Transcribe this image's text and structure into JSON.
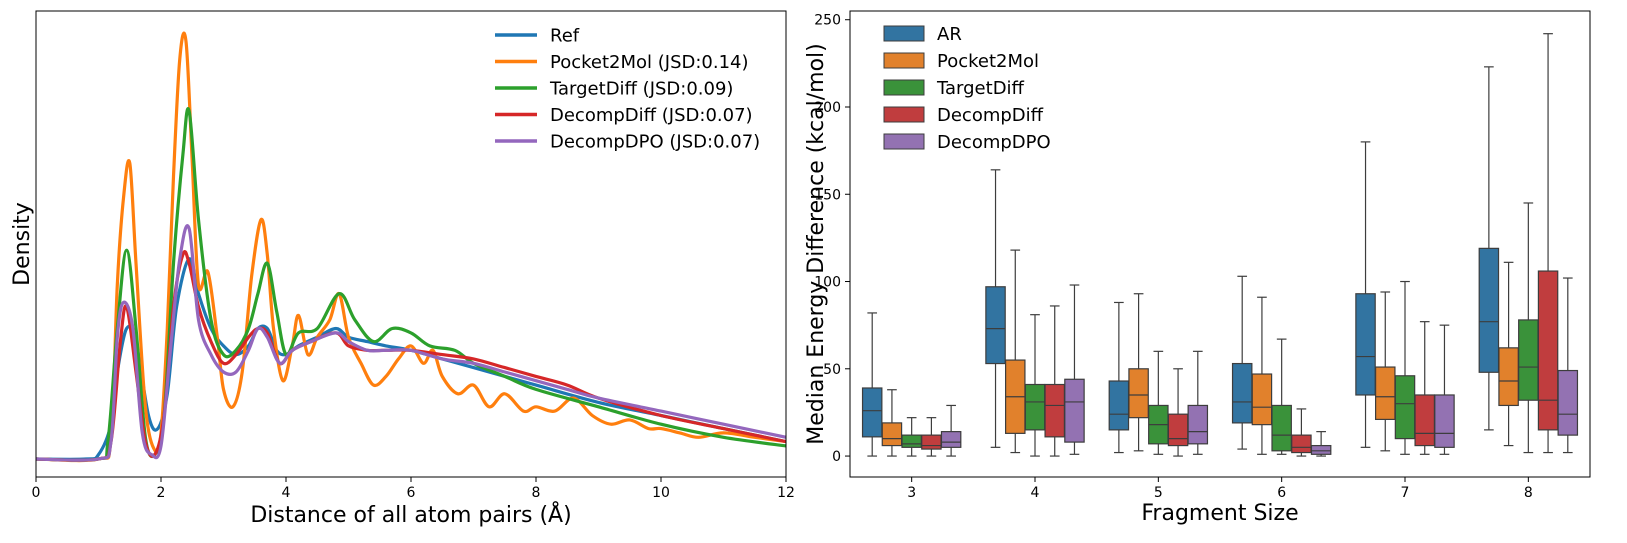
{
  "chart_data": [
    {
      "type": "line",
      "title": "",
      "xlabel": "Distance of all atom pairs (Å)",
      "ylabel": "Density",
      "xlim": [
        0,
        12
      ],
      "ylim": [
        0,
        1.0
      ],
      "xticks": [
        "0",
        "2",
        "4",
        "6",
        "8",
        "10",
        "12"
      ],
      "legend_position": "top-right",
      "series": [
        {
          "name": "Ref",
          "color": "#1f77b4",
          "x": [
            0,
            0.8,
            1.0,
            1.2,
            1.3,
            1.45,
            1.6,
            1.8,
            1.95,
            2.1,
            2.25,
            2.45,
            2.6,
            2.8,
            3.0,
            3.2,
            3.4,
            3.55,
            3.7,
            3.85,
            4.0,
            4.2,
            4.5,
            4.8,
            5.0,
            5.3,
            5.6,
            6.0,
            6.5,
            7.0,
            8.0,
            9.0,
            10.0,
            11.0,
            12.0
          ],
          "y": [
            0,
            0,
            0.01,
            0.08,
            0.2,
            0.3,
            0.27,
            0.1,
            0.07,
            0.15,
            0.35,
            0.46,
            0.38,
            0.3,
            0.26,
            0.24,
            0.26,
            0.3,
            0.3,
            0.25,
            0.24,
            0.26,
            0.28,
            0.3,
            0.28,
            0.27,
            0.26,
            0.25,
            0.23,
            0.21,
            0.17,
            0.13,
            0.1,
            0.07,
            0.04
          ]
        },
        {
          "name": "Pocket2Mol (JSD:0.14)",
          "color": "#ff7f0e",
          "x": [
            0,
            1.0,
            1.2,
            1.3,
            1.4,
            1.5,
            1.6,
            1.75,
            1.9,
            2.0,
            2.1,
            2.2,
            2.3,
            2.4,
            2.5,
            2.6,
            2.75,
            2.9,
            3.0,
            3.15,
            3.3,
            3.45,
            3.6,
            3.7,
            3.8,
            3.95,
            4.1,
            4.2,
            4.35,
            4.5,
            4.7,
            4.85,
            5.0,
            5.2,
            5.4,
            5.6,
            5.8,
            6.0,
            6.2,
            6.35,
            6.5,
            6.75,
            7.0,
            7.25,
            7.5,
            7.8,
            8.0,
            8.3,
            8.6,
            8.9,
            9.2,
            9.5,
            9.8,
            10.0,
            10.3,
            10.6,
            11.0,
            11.5,
            12.0
          ],
          "y": [
            0,
            0,
            0.05,
            0.4,
            0.6,
            0.68,
            0.45,
            0.12,
            0.02,
            0.06,
            0.3,
            0.65,
            0.92,
            0.96,
            0.68,
            0.4,
            0.43,
            0.28,
            0.16,
            0.12,
            0.2,
            0.42,
            0.55,
            0.47,
            0.3,
            0.18,
            0.26,
            0.33,
            0.24,
            0.28,
            0.32,
            0.38,
            0.28,
            0.22,
            0.17,
            0.19,
            0.23,
            0.26,
            0.22,
            0.25,
            0.19,
            0.15,
            0.17,
            0.12,
            0.15,
            0.11,
            0.12,
            0.11,
            0.14,
            0.1,
            0.08,
            0.09,
            0.07,
            0.07,
            0.06,
            0.05,
            0.06,
            0.05,
            0.04
          ]
        },
        {
          "name": "TargetDiff (JSD:0.09)",
          "color": "#2ca02c",
          "x": [
            0,
            1.0,
            1.15,
            1.3,
            1.45,
            1.6,
            1.75,
            1.9,
            2.05,
            2.2,
            2.35,
            2.45,
            2.6,
            2.8,
            3.0,
            3.2,
            3.4,
            3.55,
            3.7,
            3.85,
            4.0,
            4.2,
            4.5,
            4.85,
            5.1,
            5.4,
            5.7,
            6.0,
            6.3,
            6.7,
            7.0,
            7.5,
            8.0,
            9.0,
            10.0,
            11.0,
            12.0
          ],
          "y": [
            0,
            0,
            0.04,
            0.3,
            0.48,
            0.3,
            0.05,
            0.01,
            0.1,
            0.45,
            0.7,
            0.8,
            0.55,
            0.32,
            0.24,
            0.25,
            0.3,
            0.38,
            0.45,
            0.34,
            0.24,
            0.29,
            0.3,
            0.38,
            0.32,
            0.27,
            0.3,
            0.29,
            0.26,
            0.25,
            0.22,
            0.19,
            0.16,
            0.12,
            0.08,
            0.05,
            0.03
          ]
        },
        {
          "name": "DecompDiff (JSD:0.07)",
          "color": "#d62728",
          "x": [
            0,
            1.0,
            1.2,
            1.35,
            1.45,
            1.6,
            1.75,
            1.9,
            2.05,
            2.2,
            2.35,
            2.45,
            2.6,
            2.8,
            3.0,
            3.2,
            3.4,
            3.55,
            3.7,
            3.9,
            4.1,
            4.4,
            4.8,
            5.0,
            5.3,
            5.6,
            6.0,
            6.5,
            7.0,
            7.5,
            8.0,
            8.5,
            9.0,
            10.0,
            11.0,
            12.0
          ],
          "y": [
            0,
            0,
            0.04,
            0.27,
            0.35,
            0.2,
            0.04,
            0.01,
            0.1,
            0.35,
            0.47,
            0.45,
            0.35,
            0.27,
            0.22,
            0.24,
            0.28,
            0.3,
            0.29,
            0.22,
            0.25,
            0.27,
            0.29,
            0.26,
            0.25,
            0.25,
            0.25,
            0.24,
            0.23,
            0.21,
            0.19,
            0.17,
            0.14,
            0.1,
            0.07,
            0.04
          ]
        },
        {
          "name": "DecompDPO (JSD:0.07)",
          "color": "#9467bd",
          "x": [
            0,
            1.0,
            1.2,
            1.3,
            1.4,
            1.55,
            1.7,
            1.85,
            2.0,
            2.15,
            2.3,
            2.45,
            2.6,
            2.8,
            3.0,
            3.2,
            3.4,
            3.55,
            3.7,
            3.9,
            4.1,
            4.4,
            4.8,
            5.0,
            5.3,
            5.6,
            6.0,
            6.5,
            7.0,
            7.5,
            8.0,
            8.5,
            9.0,
            10.0,
            11.0,
            12.0
          ],
          "y": [
            0,
            0,
            0.04,
            0.28,
            0.36,
            0.3,
            0.06,
            0.01,
            0.03,
            0.25,
            0.46,
            0.53,
            0.32,
            0.24,
            0.2,
            0.2,
            0.25,
            0.3,
            0.28,
            0.22,
            0.25,
            0.27,
            0.29,
            0.27,
            0.25,
            0.25,
            0.25,
            0.23,
            0.22,
            0.2,
            0.18,
            0.16,
            0.14,
            0.11,
            0.08,
            0.05
          ]
        }
      ]
    },
    {
      "type": "box",
      "title": "",
      "xlabel": "Fragment Size",
      "ylabel": "Median Energy Difference (kcal/mol)",
      "ylim": [
        -12,
        255
      ],
      "yticks": [
        0,
        50,
        100,
        150,
        200,
        250
      ],
      "categories": [
        "3",
        "4",
        "5",
        "6",
        "7",
        "8"
      ],
      "legend_position": "top-left",
      "series": [
        {
          "name": "AR",
          "color": "#3274a1",
          "boxes": [
            {
              "whisker_low": 0,
              "q1": 11,
              "median": 26,
              "q3": 39,
              "whisker_high": 82
            },
            {
              "whisker_low": 5,
              "q1": 53,
              "median": 73,
              "q3": 97,
              "whisker_high": 164
            },
            {
              "whisker_low": 2,
              "q1": 15,
              "median": 24,
              "q3": 43,
              "whisker_high": 88
            },
            {
              "whisker_low": 4,
              "q1": 19,
              "median": 31,
              "q3": 53,
              "whisker_high": 103
            },
            {
              "whisker_low": 5,
              "q1": 35,
              "median": 57,
              "q3": 93,
              "whisker_high": 180
            },
            {
              "whisker_low": 15,
              "q1": 48,
              "median": 77,
              "q3": 119,
              "whisker_high": 223
            }
          ]
        },
        {
          "name": "Pocket2Mol",
          "color": "#e1812c",
          "boxes": [
            {
              "whisker_low": 0,
              "q1": 6,
              "median": 10,
              "q3": 19,
              "whisker_high": 38
            },
            {
              "whisker_low": 2,
              "q1": 13,
              "median": 34,
              "q3": 55,
              "whisker_high": 118
            },
            {
              "whisker_low": 3,
              "q1": 22,
              "median": 35,
              "q3": 50,
              "whisker_high": 93
            },
            {
              "whisker_low": 1,
              "q1": 18,
              "median": 28,
              "q3": 47,
              "whisker_high": 91
            },
            {
              "whisker_low": 3,
              "q1": 21,
              "median": 34,
              "q3": 51,
              "whisker_high": 94
            },
            {
              "whisker_low": 6,
              "q1": 29,
              "median": 43,
              "q3": 62,
              "whisker_high": 111
            }
          ]
        },
        {
          "name": "TargetDiff",
          "color": "#3a923a",
          "boxes": [
            {
              "whisker_low": 0,
              "q1": 5,
              "median": 7,
              "q3": 12,
              "whisker_high": 22
            },
            {
              "whisker_low": 0,
              "q1": 15,
              "median": 31,
              "q3": 41,
              "whisker_high": 81
            },
            {
              "whisker_low": 1,
              "q1": 7,
              "median": 18,
              "q3": 29,
              "whisker_high": 60
            },
            {
              "whisker_low": 1,
              "q1": 3,
              "median": 12,
              "q3": 29,
              "whisker_high": 67
            },
            {
              "whisker_low": 1,
              "q1": 10,
              "median": 30,
              "q3": 46,
              "whisker_high": 100
            },
            {
              "whisker_low": 2,
              "q1": 32,
              "median": 51,
              "q3": 78,
              "whisker_high": 145
            }
          ]
        },
        {
          "name": "DecompDiff",
          "color": "#c03d3e",
          "boxes": [
            {
              "whisker_low": 0,
              "q1": 4,
              "median": 6,
              "q3": 12,
              "whisker_high": 22
            },
            {
              "whisker_low": 0,
              "q1": 11,
              "median": 29,
              "q3": 41,
              "whisker_high": 86
            },
            {
              "whisker_low": 0,
              "q1": 6,
              "median": 10,
              "q3": 24,
              "whisker_high": 50
            },
            {
              "whisker_low": 0,
              "q1": 2,
              "median": 5,
              "q3": 12,
              "whisker_high": 27
            },
            {
              "whisker_low": 1,
              "q1": 6,
              "median": 13,
              "q3": 35,
              "whisker_high": 77
            },
            {
              "whisker_low": 2,
              "q1": 15,
              "median": 32,
              "q3": 106,
              "whisker_high": 242
            }
          ]
        },
        {
          "name": "DecompDPO",
          "color": "#9372b2",
          "boxes": [
            {
              "whisker_low": 0,
              "q1": 5,
              "median": 8,
              "q3": 14,
              "whisker_high": 29
            },
            {
              "whisker_low": 1,
              "q1": 8,
              "median": 31,
              "q3": 44,
              "whisker_high": 98
            },
            {
              "whisker_low": 1,
              "q1": 7,
              "median": 14,
              "q3": 29,
              "whisker_high": 60
            },
            {
              "whisker_low": 0,
              "q1": 1,
              "median": 3,
              "q3": 6,
              "whisker_high": 14
            },
            {
              "whisker_low": 1,
              "q1": 5,
              "median": 13,
              "q3": 35,
              "whisker_high": 75
            },
            {
              "whisker_low": 2,
              "q1": 12,
              "median": 24,
              "q3": 49,
              "whisker_high": 102
            }
          ]
        }
      ]
    }
  ]
}
